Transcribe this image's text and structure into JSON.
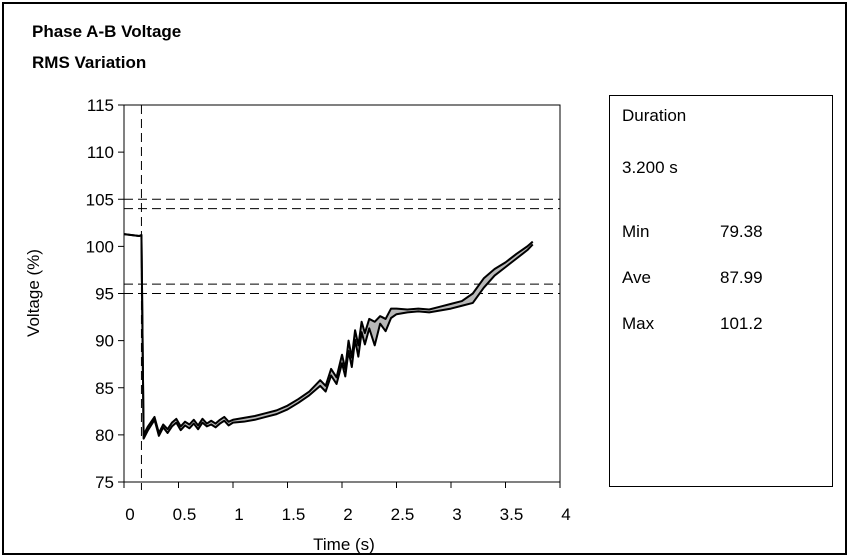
{
  "title": {
    "line1": "Phase A-B Voltage",
    "line2": "RMS Variation"
  },
  "info": {
    "duration_label": "Duration",
    "duration_value": "3.200 s",
    "stats": [
      {
        "label": "Min",
        "value": "79.38"
      },
      {
        "label": "Ave",
        "value": "87.99"
      },
      {
        "label": "Max",
        "value": "101.2"
      }
    ]
  },
  "chart_data": {
    "type": "line",
    "xlabel": "Time (s)",
    "ylabel": "Voltage (%)",
    "xlim": [
      0,
      4
    ],
    "ylim": [
      75,
      115
    ],
    "xticks": [
      0,
      0.5,
      1,
      1.5,
      2,
      2.5,
      3,
      3.5,
      4
    ],
    "yticks": [
      75,
      80,
      85,
      90,
      95,
      100,
      105,
      110,
      115
    ],
    "grid": false,
    "reference_lines": {
      "horizontal": [
        105,
        104,
        96,
        95
      ],
      "vertical": [
        0.16
      ]
    },
    "series": [
      {
        "values_x": [
          0,
          0.14,
          0.16,
          0.18,
          0.22,
          0.28,
          0.32,
          0.36,
          0.4,
          0.44,
          0.48,
          0.52,
          0.56,
          0.6,
          0.64,
          0.68,
          0.72,
          0.76,
          0.8,
          0.84,
          0.88,
          0.92,
          0.96,
          1.0,
          1.1,
          1.2,
          1.3,
          1.4,
          1.5,
          1.6,
          1.7,
          1.8,
          1.85,
          1.9,
          1.95,
          2.0,
          2.03,
          2.06,
          2.09,
          2.12,
          2.15,
          2.18,
          2.21,
          2.25,
          2.3,
          2.35,
          2.4,
          2.45,
          2.5,
          2.6,
          2.7,
          2.8,
          2.9,
          3.0,
          3.1,
          3.2,
          3.3,
          3.4,
          3.5,
          3.6,
          3.7,
          3.75
        ],
        "values_y": [
          101.3,
          101.1,
          101.2,
          79.6,
          80.5,
          81.6,
          79.9,
          80.8,
          80.2,
          80.9,
          81.3,
          80.5,
          81.0,
          80.7,
          81.2,
          80.6,
          81.3,
          80.9,
          81.1,
          80.8,
          81.2,
          81.5,
          81.0,
          81.3,
          81.4,
          81.6,
          81.9,
          82.2,
          82.7,
          83.4,
          84.2,
          85.2,
          84.6,
          86.3,
          85.4,
          87.6,
          86.2,
          88.9,
          87.2,
          90.1,
          88.3,
          90.9,
          89.6,
          91.3,
          89.5,
          91.8,
          91.0,
          92.4,
          92.8,
          93.0,
          93.1,
          93.0,
          93.2,
          93.4,
          93.7,
          94.0,
          95.6,
          96.9,
          97.8,
          98.7,
          99.6,
          100.2
        ],
        "values_y_upper": [
          101.3,
          101.1,
          101.2,
          80.0,
          80.9,
          81.9,
          80.2,
          81.1,
          80.6,
          81.3,
          81.7,
          80.9,
          81.4,
          81.1,
          81.6,
          81.0,
          81.7,
          81.2,
          81.5,
          81.2,
          81.6,
          81.9,
          81.4,
          81.6,
          81.8,
          82.0,
          82.3,
          82.6,
          83.1,
          83.8,
          84.6,
          85.8,
          85.2,
          87.0,
          86.1,
          88.5,
          87.0,
          90.0,
          88.2,
          91.1,
          89.5,
          92.0,
          90.8,
          92.3,
          92.0,
          92.6,
          92.3,
          93.4,
          93.4,
          93.3,
          93.4,
          93.3,
          93.6,
          93.9,
          94.2,
          95.0,
          96.6,
          97.6,
          98.3,
          99.2,
          100.0,
          100.5
        ]
      }
    ]
  }
}
